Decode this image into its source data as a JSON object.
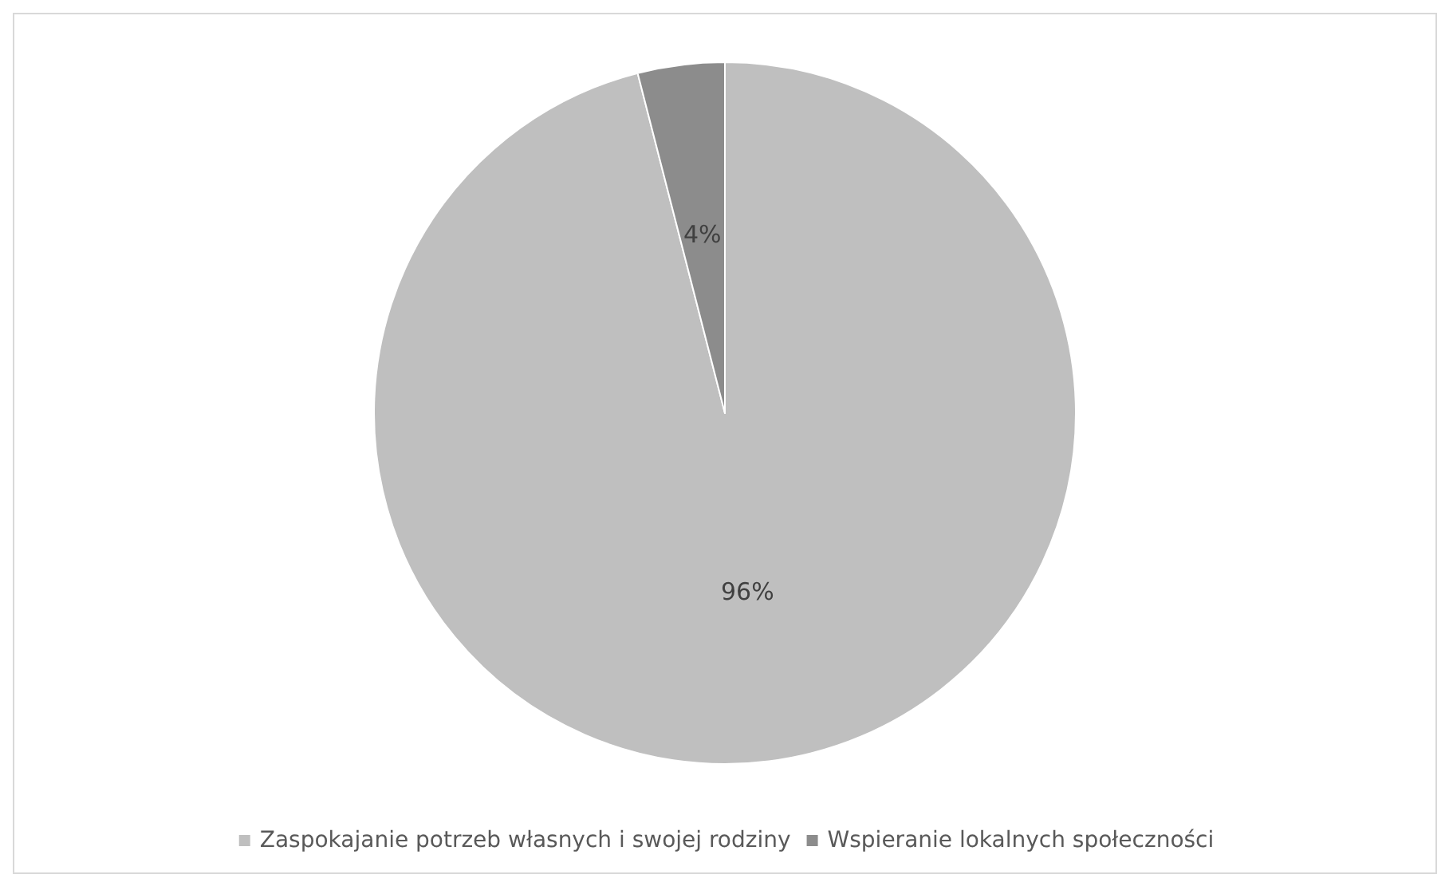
{
  "chart_data": {
    "type": "pie",
    "categories": [
      "Zaspokajanie potrzeb własnych i swojej rodziny",
      "Wspieranie lokalnych społeczności"
    ],
    "values": [
      96,
      4
    ],
    "colors": [
      "#bfbfbf",
      "#8c8c8c"
    ],
    "value_labels": [
      "96%",
      "4%"
    ],
    "legend": "bottom"
  }
}
